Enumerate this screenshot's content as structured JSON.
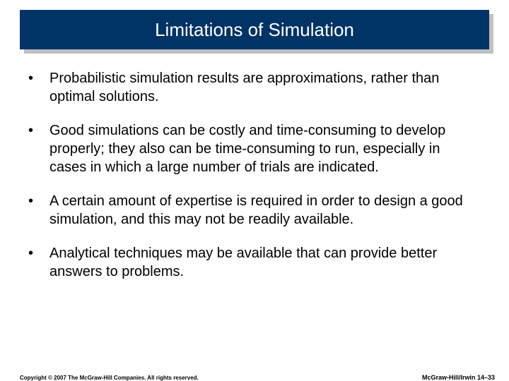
{
  "title": "Limitations of Simulation",
  "bullets": [
    "Probabilistic simulation results are approximations, rather than optimal solutions.",
    "Good simulations can be costly and time-consuming to develop properly; they also can be time-consuming to run, especially in cases in which a large number of trials are indicated.",
    "A certain amount of expertise is required in order to design a good simulation, and this may not be readily available.",
    "Analytical techniques may be available that can provide better answers to problems."
  ],
  "footer": {
    "copyright": "Copyright © 2007 The McGraw-Hill Companies. All rights reserved.",
    "brand_page": "McGraw-Hill/Irwin  14–33"
  },
  "colors": {
    "title_bg": "#003366",
    "title_text": "#ffffff",
    "body_text": "#000000",
    "footer_text": "#000000",
    "shadow": "#c0c0c0",
    "background": "#ffffff"
  },
  "type": "slide",
  "fontsizes": {
    "title": 26,
    "body": 20,
    "footer": 8
  }
}
